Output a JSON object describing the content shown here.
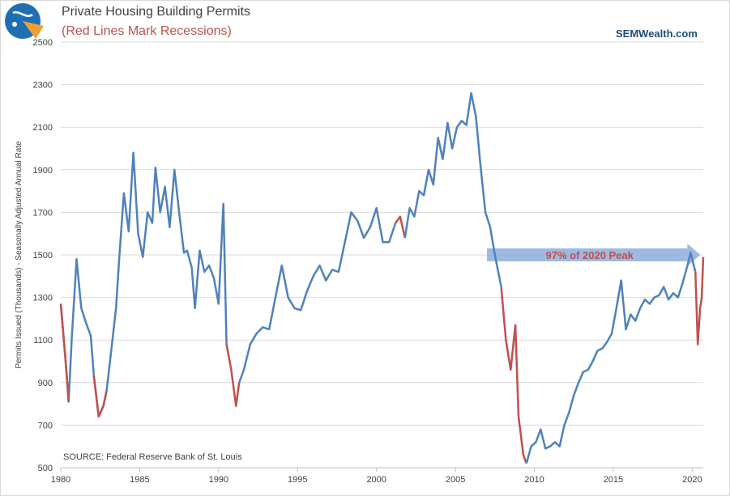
{
  "header": {
    "title": "Private Housing Building Permits",
    "subtitle": "(Red Lines Mark Recessions)",
    "brand": "SEMWealth.com"
  },
  "colors": {
    "series": "#4f81bd",
    "recession": "#c0504d",
    "arrow": "#8eaedb",
    "grid": "#d9d9d9",
    "text": "#404040"
  },
  "icons": {
    "logo": "sem-compass-logo-icon"
  },
  "chart_data": {
    "type": "line",
    "title": "Private Housing Building Permits",
    "subtitle": "(Red Lines Mark Recessions)",
    "xlabel": "",
    "ylabel": "Permits Issued (Thousands) - Seasonally Adjusted Annual Rate",
    "xlim": [
      1980,
      2020.7
    ],
    "ylim": [
      500,
      2500
    ],
    "yticks": [
      500,
      700,
      900,
      1100,
      1300,
      1500,
      1700,
      1900,
      2100,
      2300,
      2500
    ],
    "xticks": [
      1980,
      1985,
      1990,
      1995,
      2000,
      2005,
      2010,
      2015,
      2020
    ],
    "grid": "horizontal",
    "source": "SOURCE:   Federal Reserve Bank of St. Louis",
    "annotation": {
      "text": "97% of 2020 Peak",
      "value": 1500,
      "x_start": 2007.0,
      "x_end": 2020.0
    },
    "series": [
      {
        "x": [
          1980.0,
          1980.3,
          1980.5,
          1980.7,
          1981.0,
          1981.3,
          1981.6,
          1981.9,
          1982.1,
          1982.4,
          1982.7,
          1982.9
        ],
        "y": [
          1270,
          1010,
          810,
          1110,
          1480,
          1250,
          1180,
          1120,
          930,
          740,
          790,
          860
        ]
      },
      {
        "x": [
          1982.9,
          1983.2,
          1983.5,
          1983.7,
          1984.0,
          1984.3,
          1984.6,
          1984.9,
          1985.2,
          1985.5,
          1985.8,
          1986.0,
          1986.3,
          1986.6,
          1986.9,
          1987.2,
          1987.5,
          1987.8,
          1988.0,
          1988.3,
          1988.5,
          1988.8,
          1989.1,
          1989.4,
          1989.7,
          1990.0,
          1990.3,
          1990.5
        ],
        "y": [
          860,
          1050,
          1250,
          1480,
          1790,
          1610,
          1980,
          1600,
          1490,
          1700,
          1650,
          1910,
          1700,
          1820,
          1630,
          1900,
          1700,
          1510,
          1520,
          1440,
          1250,
          1520,
          1420,
          1450,
          1390,
          1270,
          1740,
          1080
        ]
      },
      {
        "x": [
          1990.5,
          1990.8,
          1991.1,
          1991.3
        ],
        "y": [
          1080,
          960,
          790,
          900
        ]
      },
      {
        "x": [
          1991.3,
          1991.6,
          1992.0,
          1992.4,
          1992.8,
          1993.2,
          1993.6,
          1994.0,
          1994.4,
          1994.8,
          1995.2,
          1995.6,
          1996.0,
          1996.4,
          1996.8,
          1997.2,
          1997.6,
          1998.0,
          1998.4,
          1998.8,
          1999.2,
          1999.6,
          2000.0,
          2000.4,
          2000.8,
          2001.2
        ],
        "y": [
          900,
          960,
          1080,
          1130,
          1160,
          1150,
          1300,
          1450,
          1300,
          1250,
          1240,
          1330,
          1400,
          1450,
          1380,
          1430,
          1420,
          1560,
          1700,
          1660,
          1580,
          1630,
          1720,
          1560,
          1560,
          1650
        ]
      },
      {
        "x": [
          2001.2,
          2001.5,
          2001.8
        ],
        "y": [
          1650,
          1680,
          1580
        ]
      },
      {
        "x": [
          2001.8,
          2002.1,
          2002.4,
          2002.7,
          2003.0,
          2003.3,
          2003.6,
          2003.9,
          2004.2,
          2004.5,
          2004.8,
          2005.1,
          2005.4,
          2005.7,
          2006.0,
          2006.3,
          2006.6,
          2006.9,
          2007.2,
          2007.5,
          2007.9
        ],
        "y": [
          1580,
          1720,
          1680,
          1800,
          1780,
          1900,
          1830,
          2050,
          1950,
          2120,
          2000,
          2100,
          2130,
          2110,
          2260,
          2150,
          1910,
          1700,
          1630,
          1500,
          1350
        ]
      },
      {
        "x": [
          2007.9,
          2008.2,
          2008.5,
          2008.8,
          2009.0,
          2009.3,
          2009.5
        ],
        "y": [
          1350,
          1100,
          960,
          1170,
          740,
          560,
          520
        ]
      },
      {
        "x": [
          2009.5,
          2009.8,
          2010.1,
          2010.4,
          2010.7,
          2011.0,
          2011.3,
          2011.6,
          2011.9,
          2012.2,
          2012.5,
          2012.8,
          2013.1,
          2013.4,
          2013.7,
          2014.0,
          2014.3,
          2014.6,
          2014.9,
          2015.2,
          2015.5,
          2015.8,
          2016.1,
          2016.4,
          2016.7,
          2017.0,
          2017.3,
          2017.6,
          2017.9,
          2018.2,
          2018.5,
          2018.8,
          2019.1,
          2019.4,
          2019.7,
          2019.9,
          2020.2
        ],
        "y": [
          520,
          600,
          620,
          680,
          590,
          600,
          620,
          600,
          700,
          760,
          840,
          900,
          950,
          960,
          1000,
          1050,
          1060,
          1090,
          1130,
          1250,
          1380,
          1150,
          1220,
          1190,
          1250,
          1290,
          1270,
          1300,
          1310,
          1350,
          1290,
          1320,
          1300,
          1370,
          1450,
          1510,
          1420
        ]
      },
      {
        "x": [
          2020.2,
          2020.35,
          2020.5,
          2020.6,
          2020.7
        ],
        "y": [
          1420,
          1080,
          1250,
          1300,
          1490
        ]
      }
    ]
  }
}
